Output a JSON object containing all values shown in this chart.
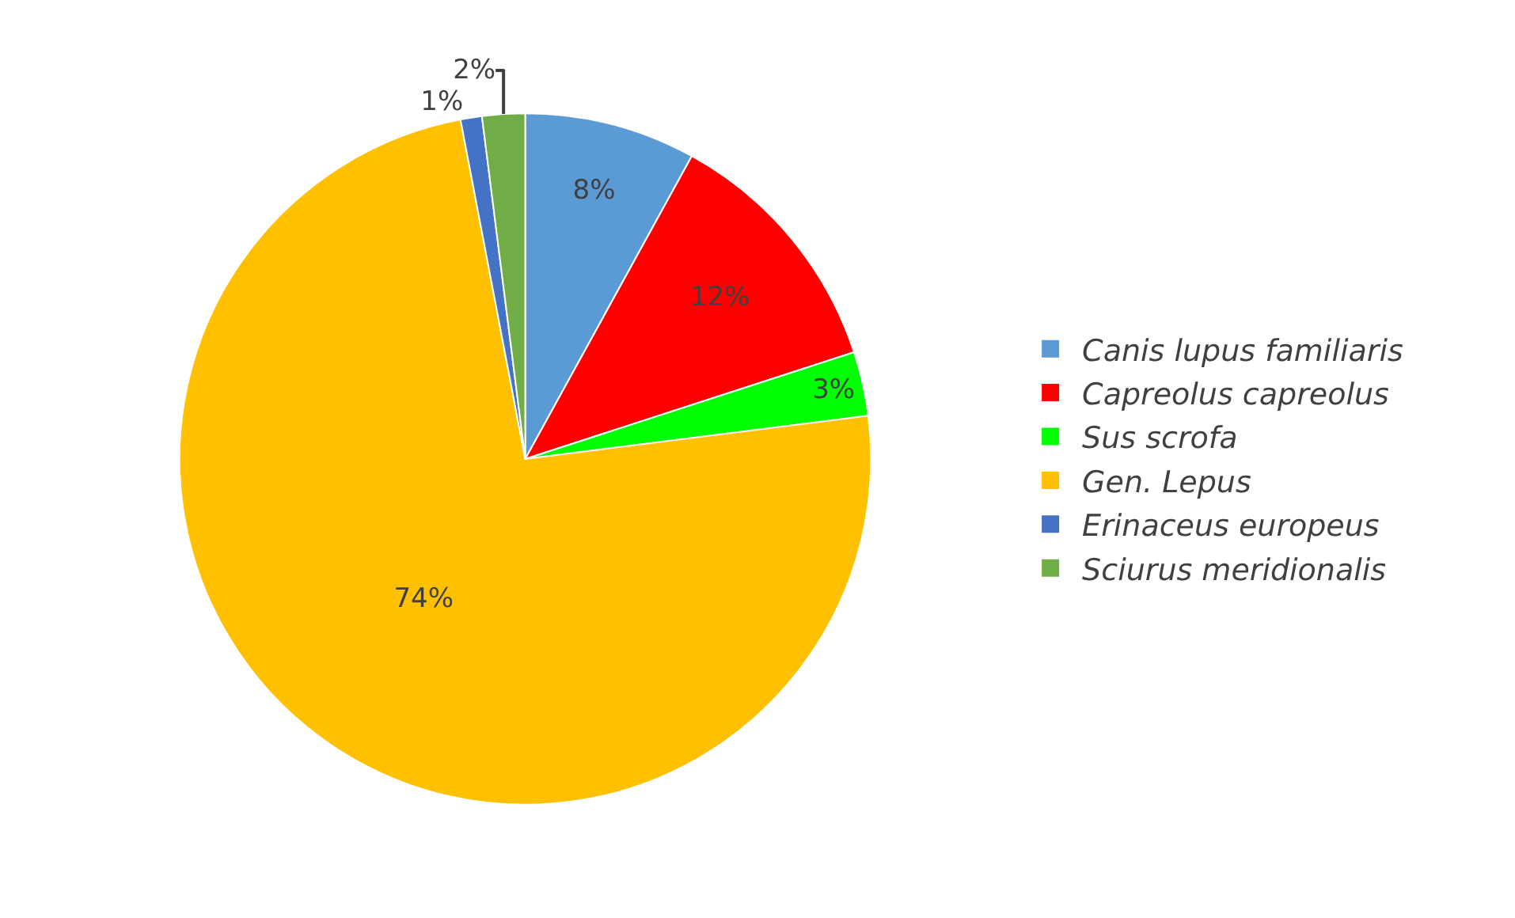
{
  "chart_data": {
    "type": "pie",
    "categories": [
      "Canis lupus familiaris",
      "Capreolus capreolus",
      "Sus scrofa",
      "Gen. Lepus",
      "Erinaceus europeus",
      "Sciurus meridionalis"
    ],
    "values": [
      8,
      12,
      3,
      74,
      1,
      2
    ],
    "colors": [
      "#5b9bd5",
      "#ff0000",
      "#00ff00",
      "#ffc000",
      "#4472c4",
      "#70ad47"
    ],
    "value_labels": [
      "8%",
      "12%",
      "3%",
      "74%",
      "1%",
      "2%"
    ],
    "legend": "right"
  }
}
